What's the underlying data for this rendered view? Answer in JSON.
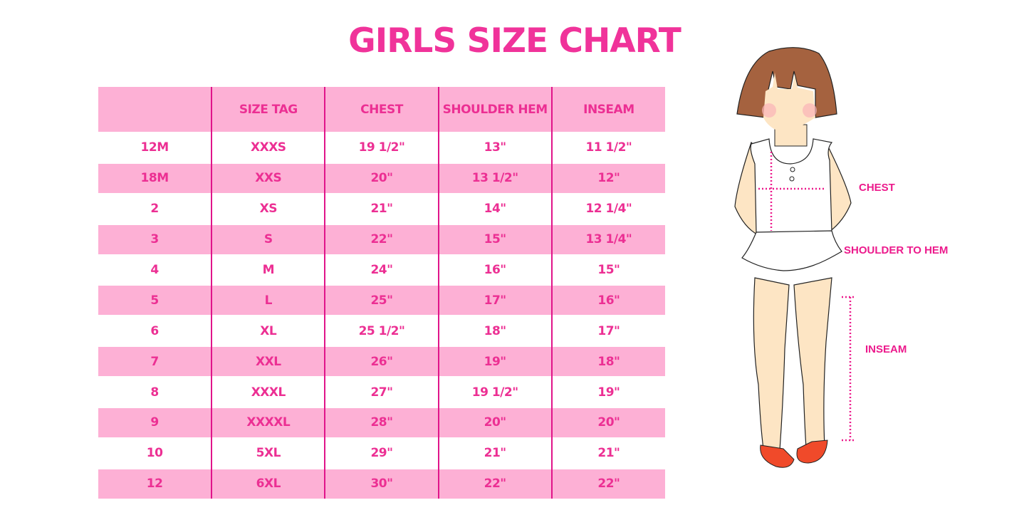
{
  "title": "GIRLS SIZE CHART",
  "table": {
    "headers": [
      "",
      "SIZE TAG",
      "CHEST",
      "SHOULDER HEM",
      "INSEAM"
    ],
    "rows": [
      [
        "12M",
        "XXXS",
        "19 1/2\"",
        "13\"",
        "11 1/2\""
      ],
      [
        "18M",
        "XXS",
        "20\"",
        "13 1/2\"",
        "12\""
      ],
      [
        "2",
        "XS",
        "21\"",
        "14\"",
        "12 1/4\""
      ],
      [
        "3",
        "S",
        "22\"",
        "15\"",
        "13 1/4\""
      ],
      [
        "4",
        "M",
        "24\"",
        "16\"",
        "15\""
      ],
      [
        "5",
        "L",
        "25\"",
        "17\"",
        "16\""
      ],
      [
        "6",
        "XL",
        "25 1/2\"",
        "18\"",
        "17\""
      ],
      [
        "7",
        "XXL",
        "26\"",
        "19\"",
        "18\""
      ],
      [
        "8",
        "XXXL",
        "27\"",
        "19 1/2\"",
        "19\""
      ],
      [
        "9",
        "XXXXL",
        "28\"",
        "20\"",
        "20\""
      ],
      [
        "10",
        "5XL",
        "29\"",
        "21\"",
        "21\""
      ],
      [
        "12",
        "6XL",
        "30\"",
        "22\"",
        "22\""
      ]
    ]
  },
  "illustration": {
    "labels": {
      "chest": "CHEST",
      "shoulder_to_hem": "SHOULDER TO HEM",
      "inseam": "INSEAM"
    }
  },
  "colors": {
    "accent": "#ec2f93",
    "row_pink": "#fdb0d5",
    "hair": "#a5623f",
    "skin": "#fde5c4",
    "shoes": "#f04a2a"
  }
}
